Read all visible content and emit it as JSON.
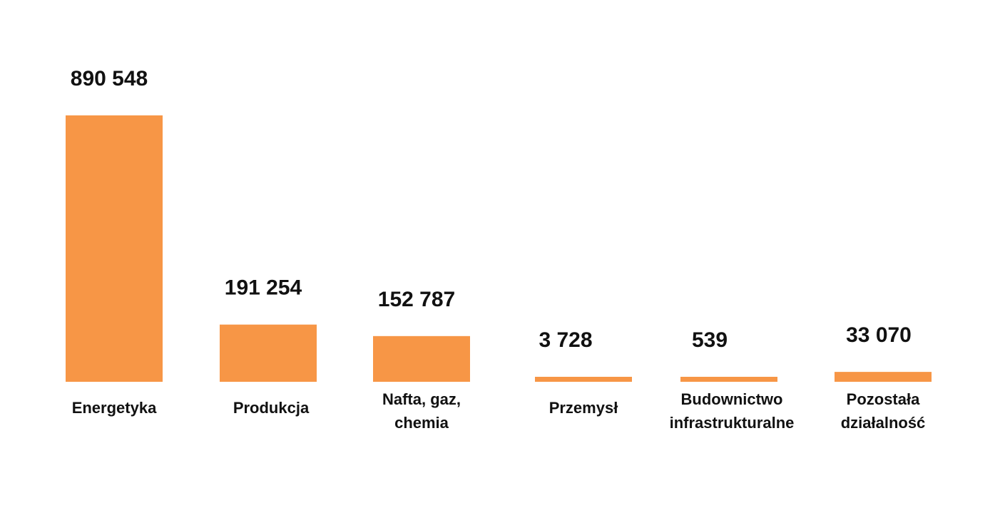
{
  "chart_data": {
    "type": "bar",
    "title": "",
    "xlabel": "",
    "ylabel": "",
    "ylim": [
      0,
      890548
    ],
    "grid": false,
    "legend": "none",
    "bar_color": "#F79646",
    "categories": [
      [
        "Energetyka"
      ],
      [
        "Produkcja"
      ],
      [
        "Nafta, gaz,",
        "chemia"
      ],
      [
        "Przemysł"
      ],
      [
        "Budownictwo",
        "infrastrukturalne"
      ],
      [
        "Pozostała",
        "działalność"
      ]
    ],
    "values": [
      890548,
      191254,
      152787,
      3728,
      539,
      33070
    ],
    "value_labels": [
      "890 548",
      "191 254",
      "152 787",
      "3 728",
      "539",
      "33 070"
    ]
  }
}
